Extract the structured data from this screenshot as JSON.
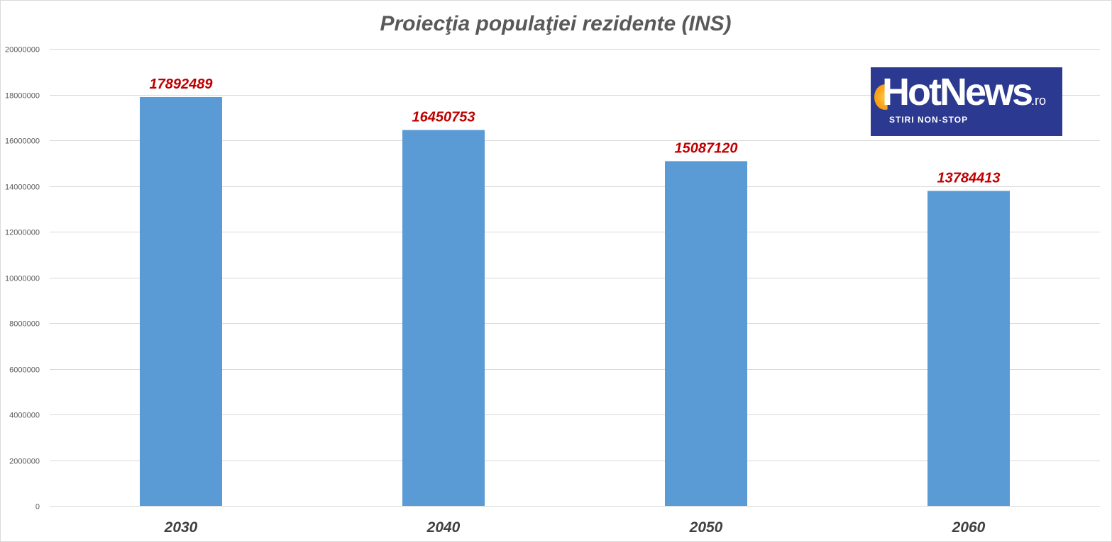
{
  "colors": {
    "bar": "#5b9bd5",
    "data_label": "#c00000",
    "logo_background": "#2b3990",
    "logo_sun": "#f7a51c"
  },
  "logo": {
    "name": "HotNews",
    "suffix": ".ro",
    "tagline": "STIRI NON-STOP"
  },
  "chart_data": {
    "type": "bar",
    "title": "Proiecţia populaţiei rezidente (INS)",
    "xlabel": "",
    "ylabel": "",
    "categories": [
      "2030",
      "2040",
      "2050",
      "2060"
    ],
    "values": [
      17892489,
      16450753,
      15087120,
      13784413
    ],
    "data_labels": [
      "17892489",
      "16450753",
      "15087120",
      "13784413"
    ],
    "ylim": [
      0,
      20000000
    ],
    "y_ticks": [
      0,
      2000000,
      4000000,
      6000000,
      8000000,
      10000000,
      12000000,
      14000000,
      16000000,
      18000000,
      20000000
    ],
    "y_tick_labels": [
      "0",
      "2000000",
      "4000000",
      "6000000",
      "8000000",
      "10000000",
      "12000000",
      "14000000",
      "16000000",
      "18000000",
      "20000000"
    ],
    "grid": true,
    "legend": "none"
  }
}
